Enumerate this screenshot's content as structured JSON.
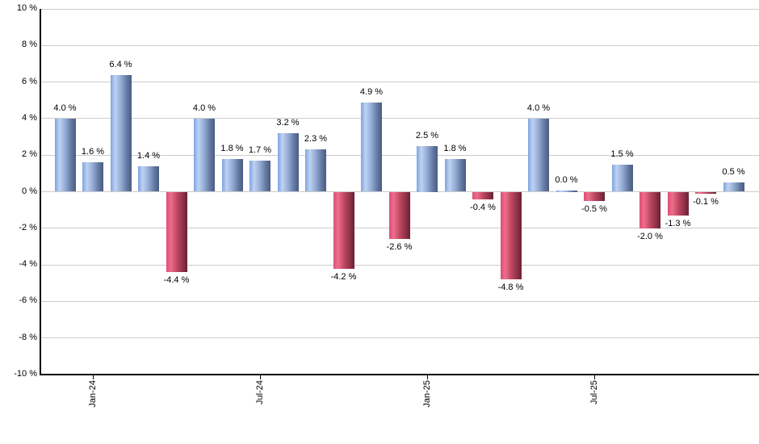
{
  "chart_data": {
    "type": "bar",
    "title": "",
    "xlabel": "",
    "ylabel": "",
    "unit": "%",
    "values": [
      4.0,
      1.6,
      6.4,
      1.4,
      -4.4,
      4.0,
      1.8,
      1.7,
      3.2,
      2.3,
      -4.2,
      4.9,
      -2.6,
      2.5,
      1.8,
      -0.4,
      -4.8,
      4.0,
      0.0,
      -0.5,
      1.5,
      -2.0,
      -1.3,
      -0.1,
      0.5
    ],
    "bar_labels": [
      "4.0 %",
      "1.6 %",
      "6.4 %",
      "1.4 %",
      "-4.4 %",
      "4.0 %",
      "1.8 %",
      "1.7 %",
      "3.2 %",
      "2.3 %",
      "-4.2 %",
      "4.9 %",
      "-2.6 %",
      "2.5 %",
      "1.8 %",
      "-0.4 %",
      "-4.8 %",
      "4.0 %",
      "0.0 %",
      "-0.5 %",
      "1.5 %",
      "-2.0 %",
      "-1.3 %",
      "-0.1 %",
      "0.5 %"
    ],
    "x_ticks": [
      {
        "bar_index": 1,
        "label": "Jan-24"
      },
      {
        "bar_index": 7,
        "label": "Jul-24"
      },
      {
        "bar_index": 13,
        "label": "Jan-25"
      },
      {
        "bar_index": 19,
        "label": "Jul-25"
      }
    ],
    "y_tick_labels": [
      "10 %",
      "8 %",
      "6 %",
      "4 %",
      "2 %",
      "0 %",
      "-2 %",
      "-4 %",
      "-6 %",
      "-8 %",
      "-10 %"
    ],
    "ylim": [
      -10,
      10
    ],
    "y_step": 2,
    "grid": true,
    "legend_position": "none",
    "colors": {
      "positive_bar_gradient": [
        "#7fa3e0",
        "#bfd2f2",
        "#92abd4",
        "#61759e",
        "#4a5d82"
      ],
      "negative_bar_gradient": [
        "#dd4f73",
        "#ee6d8c",
        "#c04862",
        "#8e3048",
        "#6b2033"
      ],
      "gridline": "#cccccc",
      "axis": "#000000",
      "text": "#000000",
      "background": "#ffffff"
    }
  }
}
